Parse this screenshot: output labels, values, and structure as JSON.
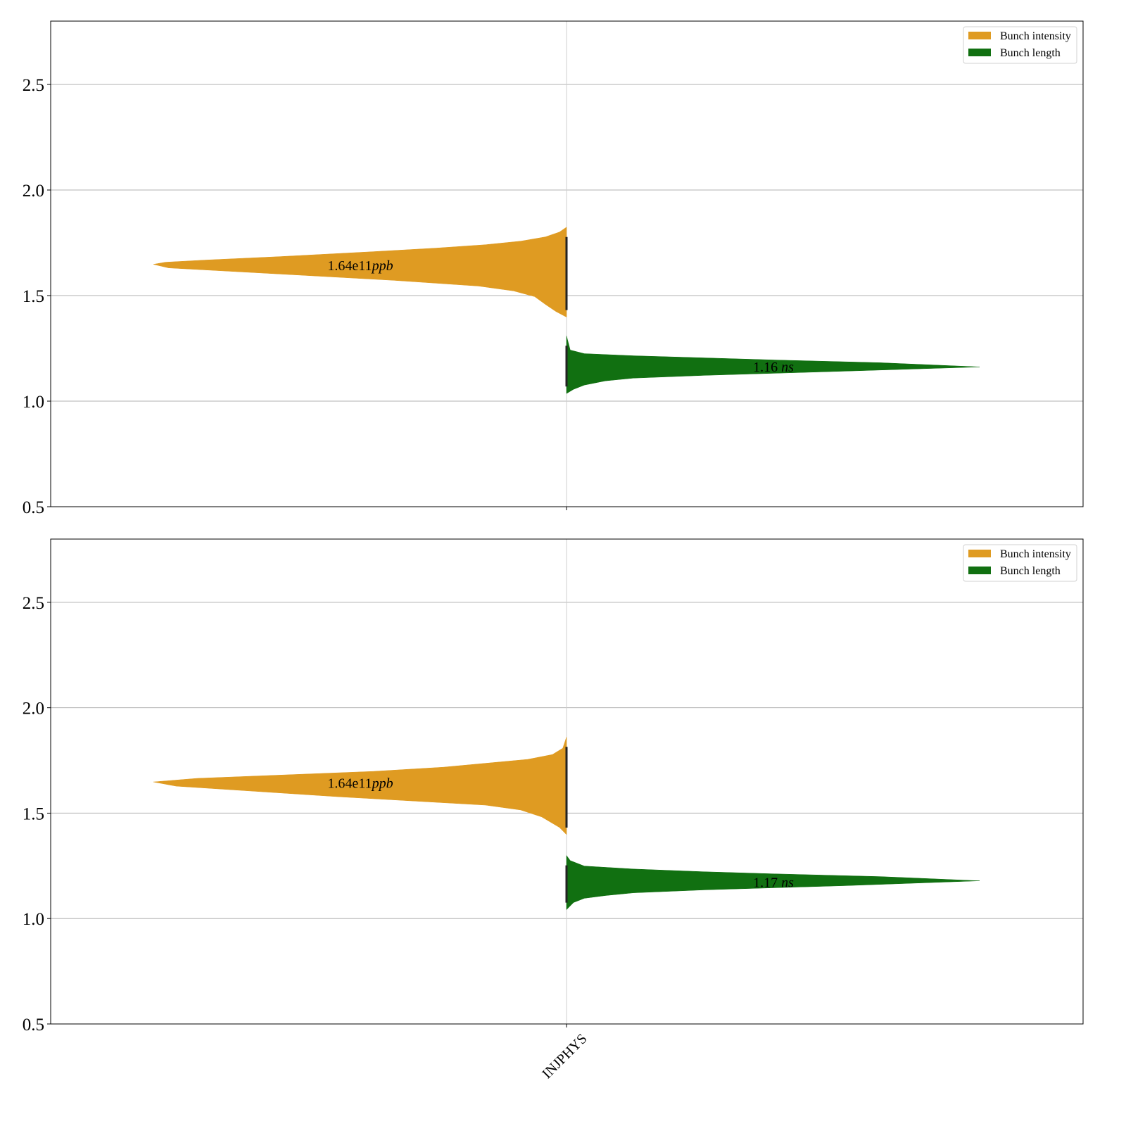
{
  "chart_data": [
    {
      "type": "violin",
      "subtype": "split",
      "categories": [
        "INJPHYS"
      ],
      "show_category_labels": false,
      "ylim": [
        0.5,
        2.8
      ],
      "yticks": [
        "0.5",
        "1.0",
        "1.5",
        "2.0",
        "2.5"
      ],
      "grid": true,
      "legend": {
        "placement": "top-right",
        "entries": [
          "Bunch intensity",
          "Bunch length"
        ]
      },
      "series": [
        {
          "name": "Bunch intensity",
          "side": "left",
          "color": "#df9b22",
          "annotation": {
            "value": "1.64e11",
            "unit": "ppb"
          },
          "annotation_y": 1.64,
          "density_profile": [
            [
              1.824,
              0
            ],
            [
              1.801,
              0.017
            ],
            [
              1.778,
              0.051
            ],
            [
              1.758,
              0.11
            ],
            [
              1.741,
              0.196
            ],
            [
              1.725,
              0.315
            ],
            [
              1.708,
              0.468
            ],
            [
              1.685,
              0.69
            ],
            [
              1.668,
              0.877
            ],
            [
              1.658,
              0.971
            ],
            [
              1.648,
              1.0
            ],
            [
              1.631,
              0.963
            ],
            [
              1.598,
              0.656
            ],
            [
              1.572,
              0.417
            ],
            [
              1.545,
              0.213
            ],
            [
              1.522,
              0.128
            ],
            [
              1.495,
              0.077
            ],
            [
              1.458,
              0.051
            ],
            [
              1.425,
              0.026
            ],
            [
              1.398,
              0
            ]
          ]
        },
        {
          "name": "Bunch length",
          "side": "right",
          "color": "#117011",
          "annotation": {
            "value": "1.16",
            "unit": "ns"
          },
          "annotation_y": 1.16,
          "density_profile": [
            [
              1.309,
              0
            ],
            [
              1.242,
              0.009
            ],
            [
              1.225,
              0.043
            ],
            [
              1.215,
              0.162
            ],
            [
              1.205,
              0.333
            ],
            [
              1.195,
              0.503
            ],
            [
              1.182,
              0.76
            ],
            [
              1.162,
              1.0
            ],
            [
              1.142,
              0.674
            ],
            [
              1.122,
              0.333
            ],
            [
              1.109,
              0.162
            ],
            [
              1.096,
              0.094
            ],
            [
              1.076,
              0.043
            ],
            [
              1.056,
              0.017
            ],
            [
              1.036,
              0
            ]
          ]
        }
      ]
    },
    {
      "type": "violin",
      "subtype": "split",
      "categories": [
        "INJPHYS"
      ],
      "show_category_labels": true,
      "ylim": [
        0.5,
        2.8
      ],
      "yticks": [
        "0.5",
        "1.0",
        "1.5",
        "2.0",
        "2.5"
      ],
      "grid": true,
      "legend": {
        "placement": "top-right",
        "entries": [
          "Bunch intensity",
          "Bunch length"
        ]
      },
      "series": [
        {
          "name": "Bunch intensity",
          "side": "left",
          "color": "#df9b22",
          "annotation": {
            "value": "1.64e11",
            "unit": "ppb"
          },
          "annotation_y": 1.64,
          "density_profile": [
            [
              1.861,
              0
            ],
            [
              1.808,
              0.009
            ],
            [
              1.778,
              0.034
            ],
            [
              1.755,
              0.094
            ],
            [
              1.718,
              0.298
            ],
            [
              1.698,
              0.468
            ],
            [
              1.665,
              0.894
            ],
            [
              1.648,
              1.0
            ],
            [
              1.628,
              0.945
            ],
            [
              1.578,
              0.554
            ],
            [
              1.538,
              0.196
            ],
            [
              1.515,
              0.111
            ],
            [
              1.482,
              0.06
            ],
            [
              1.432,
              0.017
            ],
            [
              1.398,
              0
            ]
          ]
        },
        {
          "name": "Bunch length",
          "side": "right",
          "color": "#117011",
          "annotation": {
            "value": "1.17",
            "unit": "ns"
          },
          "annotation_y": 1.17,
          "density_profile": [
            [
              1.299,
              0
            ],
            [
              1.275,
              0.009
            ],
            [
              1.249,
              0.043
            ],
            [
              1.235,
              0.162
            ],
            [
              1.222,
              0.333
            ],
            [
              1.212,
              0.503
            ],
            [
              1.199,
              0.76
            ],
            [
              1.179,
              1.0
            ],
            [
              1.156,
              0.674
            ],
            [
              1.136,
              0.333
            ],
            [
              1.122,
              0.162
            ],
            [
              1.109,
              0.094
            ],
            [
              1.096,
              0.043
            ],
            [
              1.076,
              0.017
            ],
            [
              1.042,
              0
            ]
          ]
        }
      ]
    }
  ]
}
